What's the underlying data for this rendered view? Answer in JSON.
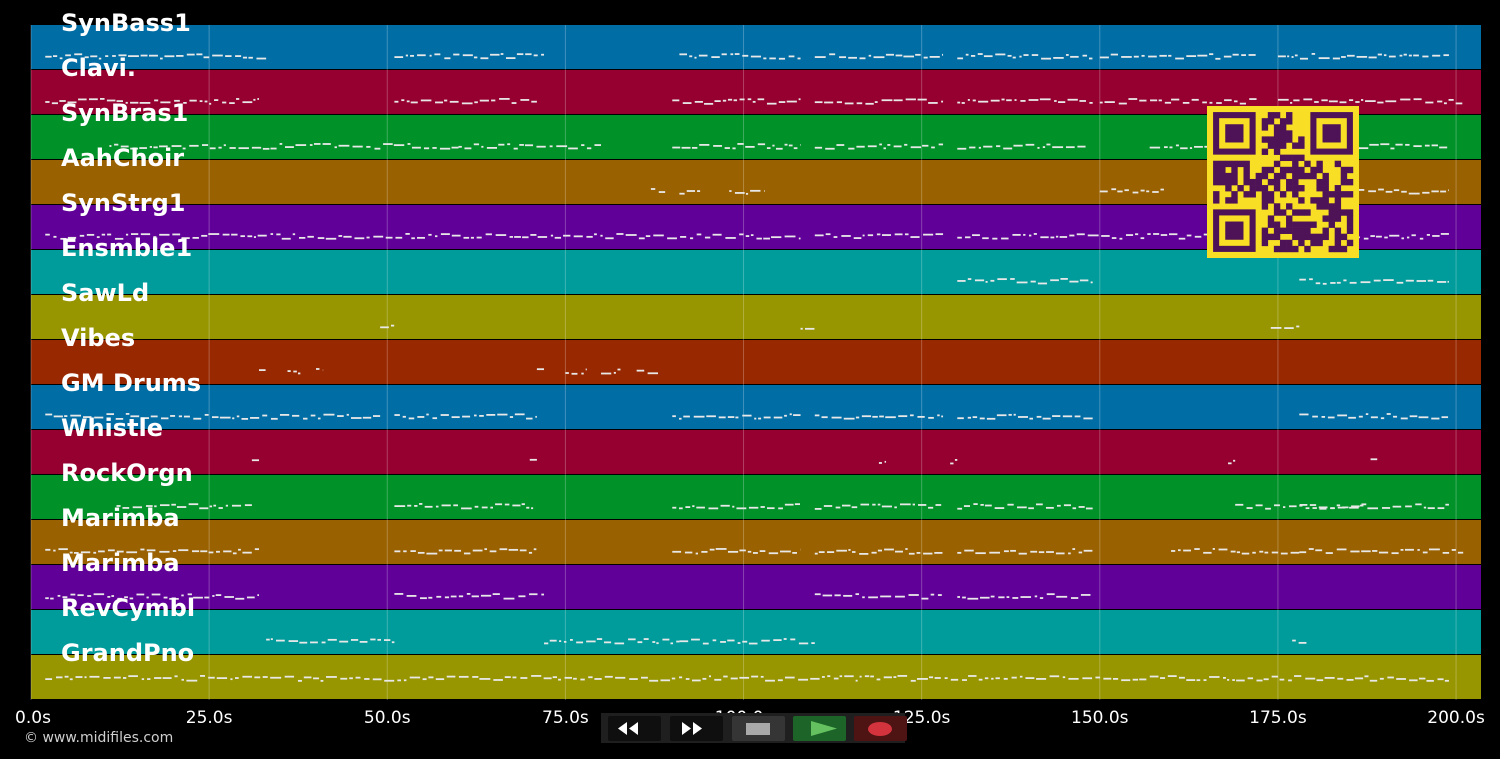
{
  "colors": {
    "background": "#000000",
    "rows": [
      "#006da5",
      "#960030",
      "#009128",
      "#9a6100",
      "#610098",
      "#009b9b",
      "#979600",
      "#982800"
    ],
    "note": "#e8e8e8",
    "qr_bg": "#f8df26",
    "qr_fg": "#4e1357"
  },
  "tracks": [
    "SynBass1",
    "Clavi.",
    "SynBras1",
    "AahChoir",
    "SynStrg1",
    "Ensmble1",
    "SawLd",
    "Vibes",
    "GM Drums",
    "Whistle",
    "RockOrgn",
    "Marimba",
    "Marimba",
    "RevCymbl",
    "GrandPno"
  ],
  "x_axis": {
    "ticks": [
      {
        "value": 0,
        "label": "0.0s"
      },
      {
        "value": 25,
        "label": "25.0s"
      },
      {
        "value": 50,
        "label": "50.0s"
      },
      {
        "value": 75,
        "label": "75.0s"
      },
      {
        "value": 100,
        "label": "100.0s"
      },
      {
        "value": 125,
        "label": "125.0s"
      },
      {
        "value": 150,
        "label": "150.0s"
      },
      {
        "value": 175,
        "label": "175.0s"
      },
      {
        "value": 200,
        "label": "200.0s"
      }
    ],
    "range": [
      0,
      203.5
    ]
  },
  "note_activity": [
    [
      [
        2,
        33
      ],
      [
        51,
        72
      ],
      [
        91,
        108
      ],
      [
        110,
        128
      ],
      [
        130,
        149
      ],
      [
        150,
        172
      ],
      [
        175,
        199
      ]
    ],
    [
      [
        2,
        32
      ],
      [
        51,
        71
      ],
      [
        90,
        108
      ],
      [
        110,
        128
      ],
      [
        130,
        149
      ],
      [
        150,
        160
      ],
      [
        160,
        172
      ],
      [
        175,
        201
      ]
    ],
    [
      [
        11,
        31
      ],
      [
        31,
        60
      ],
      [
        60,
        80
      ],
      [
        90,
        108
      ],
      [
        110,
        128
      ],
      [
        130,
        148
      ],
      [
        157,
        199
      ]
    ],
    [
      [
        87,
        89
      ],
      [
        91,
        94
      ],
      [
        98,
        103
      ],
      [
        150,
        159
      ],
      [
        175,
        199
      ]
    ],
    [
      [
        2,
        108
      ],
      [
        110,
        128
      ],
      [
        130,
        199
      ]
    ],
    [
      [
        130,
        149
      ],
      [
        178,
        199
      ]
    ],
    [
      [
        49,
        51
      ],
      [
        108,
        110
      ],
      [
        174,
        178
      ]
    ],
    [
      [
        32,
        33
      ],
      [
        36,
        38
      ],
      [
        40,
        41
      ],
      [
        71,
        72
      ],
      [
        75,
        78
      ],
      [
        80,
        83
      ],
      [
        85,
        88
      ]
    ],
    [
      [
        2,
        49
      ],
      [
        51,
        71
      ],
      [
        90,
        108
      ],
      [
        110,
        128
      ],
      [
        130,
        149
      ],
      [
        178,
        199
      ]
    ],
    [
      [
        31,
        32
      ],
      [
        70,
        71
      ],
      [
        119,
        120
      ],
      [
        129,
        130
      ],
      [
        168,
        169
      ],
      [
        188,
        189
      ]
    ],
    [
      [
        12,
        31
      ],
      [
        51,
        71
      ],
      [
        90,
        108
      ],
      [
        110,
        128
      ],
      [
        130,
        149
      ],
      [
        169,
        188
      ],
      [
        178,
        199
      ]
    ],
    [
      [
        2,
        32
      ],
      [
        51,
        71
      ],
      [
        90,
        108
      ],
      [
        110,
        128
      ],
      [
        130,
        149
      ],
      [
        160,
        178
      ],
      [
        178,
        201
      ]
    ],
    [
      [
        2,
        32
      ],
      [
        51,
        72
      ],
      [
        110,
        128
      ],
      [
        130,
        149
      ]
    ],
    [
      [
        33,
        51
      ],
      [
        72,
        91
      ],
      [
        91,
        110
      ],
      [
        177,
        179
      ]
    ],
    [
      [
        2,
        199
      ]
    ]
  ],
  "qr_code": {
    "visible": true
  },
  "transport": {
    "rewind": "rewind-icon",
    "fast_forward": "fast-forward-icon",
    "stop": "stop-icon",
    "play": "play-icon",
    "record": "record-icon"
  },
  "footer": {
    "copyright": "© www.midifiles.com"
  }
}
